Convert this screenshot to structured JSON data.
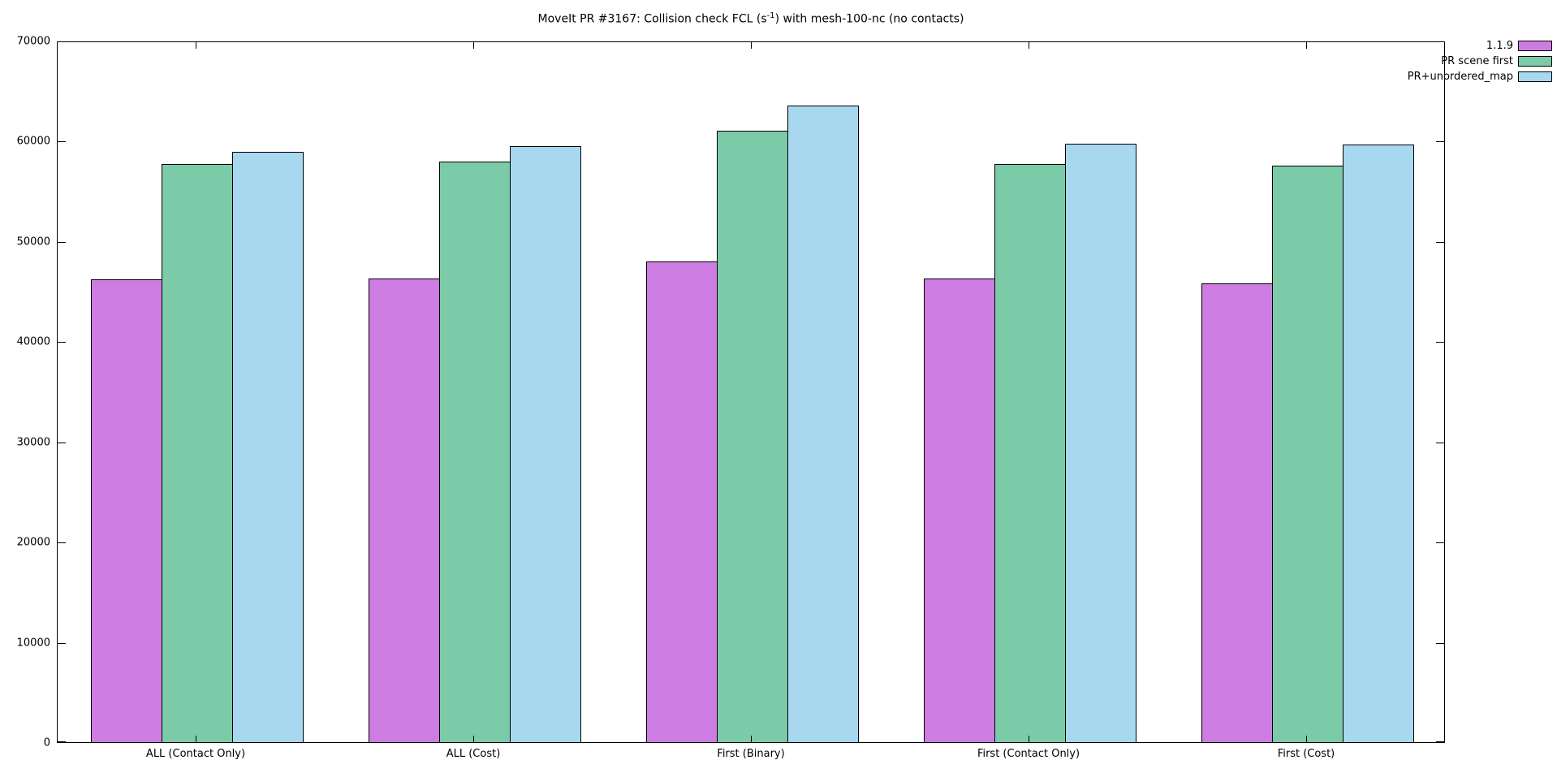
{
  "chart_data": {
    "type": "bar",
    "title_prefix": "MoveIt PR #3167: Collision check FCL (s",
    "title_sup": "-1",
    "title_suffix": ") with mesh-100-nc (no contacts)",
    "categories": [
      "ALL (Contact Only)",
      "ALL (Cost)",
      "First (Binary)",
      "First (Contact Only)",
      "First (Cost)"
    ],
    "series": [
      {
        "name": "1.1.9",
        "color": "#cd7de2",
        "values": [
          46200,
          46300,
          48000,
          46300,
          45800
        ]
      },
      {
        "name": "PR scene first",
        "color": "#7ccba8",
        "values": [
          57700,
          57900,
          61000,
          57700,
          57500
        ]
      },
      {
        "name": "PR+unordered_map",
        "color": "#a8d8f0",
        "values": [
          58900,
          59500,
          63500,
          59700,
          59600
        ]
      }
    ],
    "ylim": [
      0,
      70000
    ],
    "ytick_step": 10000,
    "ytick_labels": [
      "0",
      "10000",
      "20000",
      "30000",
      "40000",
      "50000",
      "60000",
      "70000"
    ],
    "grid": false,
    "legend_position": "top-right-outside",
    "bar_border_color": "#000000",
    "background_color": "#ffffff"
  }
}
